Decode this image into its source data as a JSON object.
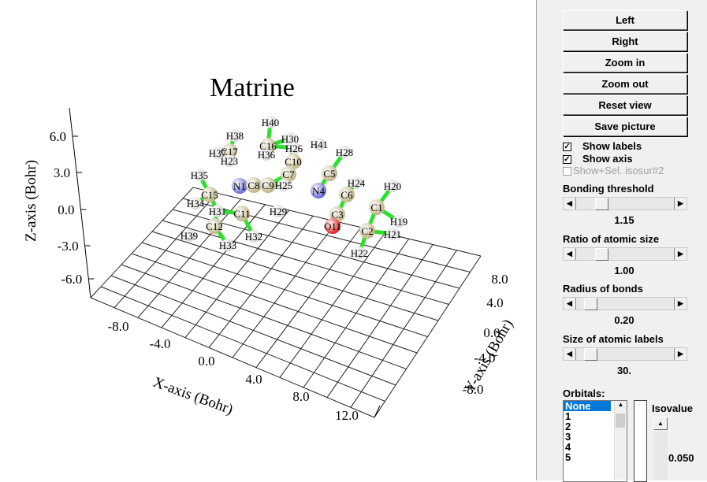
{
  "viewer": {
    "title": "Matrine",
    "axes": {
      "x_label": "X-axis (Bohr)",
      "y_label": "Y-axis (Bohr)",
      "z_label": "Z-axis (Bohr)",
      "x_ticks": [
        "-8.0",
        "-4.0",
        "0.0",
        "4.0",
        "8.0",
        "12.0"
      ],
      "y_ticks": [
        "8.0",
        "4.0",
        "0.0",
        "-4.0",
        "-8.0"
      ],
      "z_ticks": [
        "6.0",
        "3.0",
        "0.0",
        "-3.0",
        "-6.0"
      ]
    },
    "atoms": [
      "H40",
      "H38",
      "C16",
      "H30",
      "H26",
      "H41",
      "H28",
      "H37",
      "C17",
      "H23",
      "H36",
      "C10",
      "C7",
      "C5",
      "H35",
      "H24",
      "N1",
      "C8",
      "C9",
      "H25",
      "N4",
      "C6",
      "H20",
      "C15",
      "H34",
      "H31",
      "C11",
      "H29",
      "C3",
      "C1",
      "O11",
      "H19",
      "C12",
      "H39",
      "C2",
      "H21",
      "H32",
      "H33",
      "H22"
    ]
  },
  "panel": {
    "buttons": [
      "Left",
      "Right",
      "Zoom in",
      "Zoom out",
      "Reset view",
      "Save picture"
    ],
    "checkboxes": [
      {
        "label": "Show labels",
        "checked": true
      },
      {
        "label": "Show axis",
        "checked": true
      },
      {
        "label": "Show+Sel. isosur#2",
        "checked": false,
        "disabled": true
      }
    ],
    "sliders": [
      {
        "label": "Bonding threshold",
        "value": "1.15"
      },
      {
        "label": "Ratio of atomic size",
        "value": "1.00"
      },
      {
        "label": "Radius of bonds",
        "value": "0.20"
      },
      {
        "label": "Size of atomic labels",
        "value": "30."
      }
    ],
    "orbitals": {
      "label": "Orbitals:",
      "items": [
        "None",
        "1",
        "2",
        "3",
        "4",
        "5"
      ],
      "selected_index": 0
    },
    "isovalue": {
      "label": "Isovalue",
      "value": "0.050"
    }
  }
}
